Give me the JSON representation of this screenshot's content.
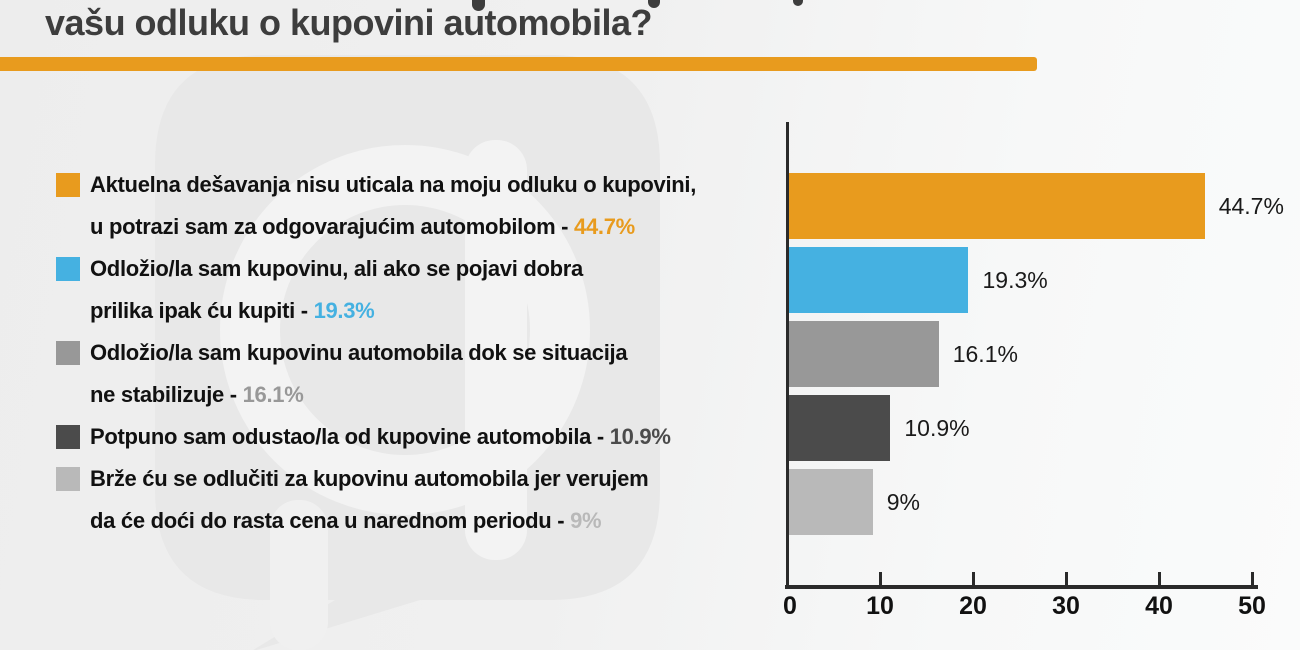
{
  "header": {
    "title": "vašu odluku o kupovini automobila?",
    "accent_color": "#e89b1e"
  },
  "colors": {
    "orange": "#e89b1e",
    "blue": "#45b1e1",
    "gray": "#989898",
    "dark_gray": "#4b4b4b",
    "light_gray": "#b9b9b9",
    "title_text": "#3d3d3d",
    "legend_text": "#111111",
    "axis": "#2a2a2a"
  },
  "legend": {
    "items": [
      {
        "lines": [
          "Aktuelna dešavanja nisu uticala na moju odluku o kupovini,",
          "u potrazi sam za odgovarajućim automobilom - "
        ],
        "value": "44.7%",
        "color": "#e89b1e"
      },
      {
        "lines": [
          "Odložio/la sam kupovinu, ali ako se pojavi dobra",
          "prilika ipak ću kupiti - "
        ],
        "value": "19.3%",
        "color": "#45b1e1"
      },
      {
        "lines": [
          "Odložio/la sam kupovinu automobila dok se situacija",
          "ne stabilizuje  - "
        ],
        "value": "16.1%",
        "color": "#989898"
      },
      {
        "lines": [
          "Potpuno sam odustao/la od kupovine automobila - "
        ],
        "value": "10.9%",
        "color": "#4b4b4b"
      },
      {
        "lines": [
          "Brže ću se odlučiti za kupovinu automobila jer verujem",
          "da će doći do rasta cena u narednom periodu - "
        ],
        "value": "9%",
        "color": "#b9b9b9"
      }
    ]
  },
  "chart_data": {
    "type": "bar",
    "orientation": "horizontal",
    "title": "vašu odluku o kupovini automobila?",
    "categories": [
      "Aktuelna dešavanja nisu uticala na moju odluku o kupovini, u potrazi sam za odgovarajućim automobilom",
      "Odložio/la sam kupovinu, ali ako se pojavi dobra prilika ipak ću kupiti",
      "Odložio/la sam kupovinu automobila dok se situacija ne stabilizuje",
      "Potpuno sam odustao/la od kupovine automobila",
      "Brže ću se odlučiti za kupovinu automobila jer verujem da će doći do rasta cena u narednom periodu"
    ],
    "values": [
      44.7,
      19.3,
      16.1,
      10.9,
      9
    ],
    "value_labels": [
      "44.7%",
      "19.3%",
      "16.1%",
      "10.9%",
      "9%"
    ],
    "colors": [
      "#e89b1e",
      "#45b1e1",
      "#989898",
      "#4b4b4b",
      "#b9b9b9"
    ],
    "xlim": [
      0,
      50
    ],
    "x_ticks": [
      "0",
      "10",
      "20",
      "30",
      "40",
      "50"
    ],
    "xlabel": "",
    "ylabel": "",
    "grid": false,
    "legend_position": "left"
  }
}
